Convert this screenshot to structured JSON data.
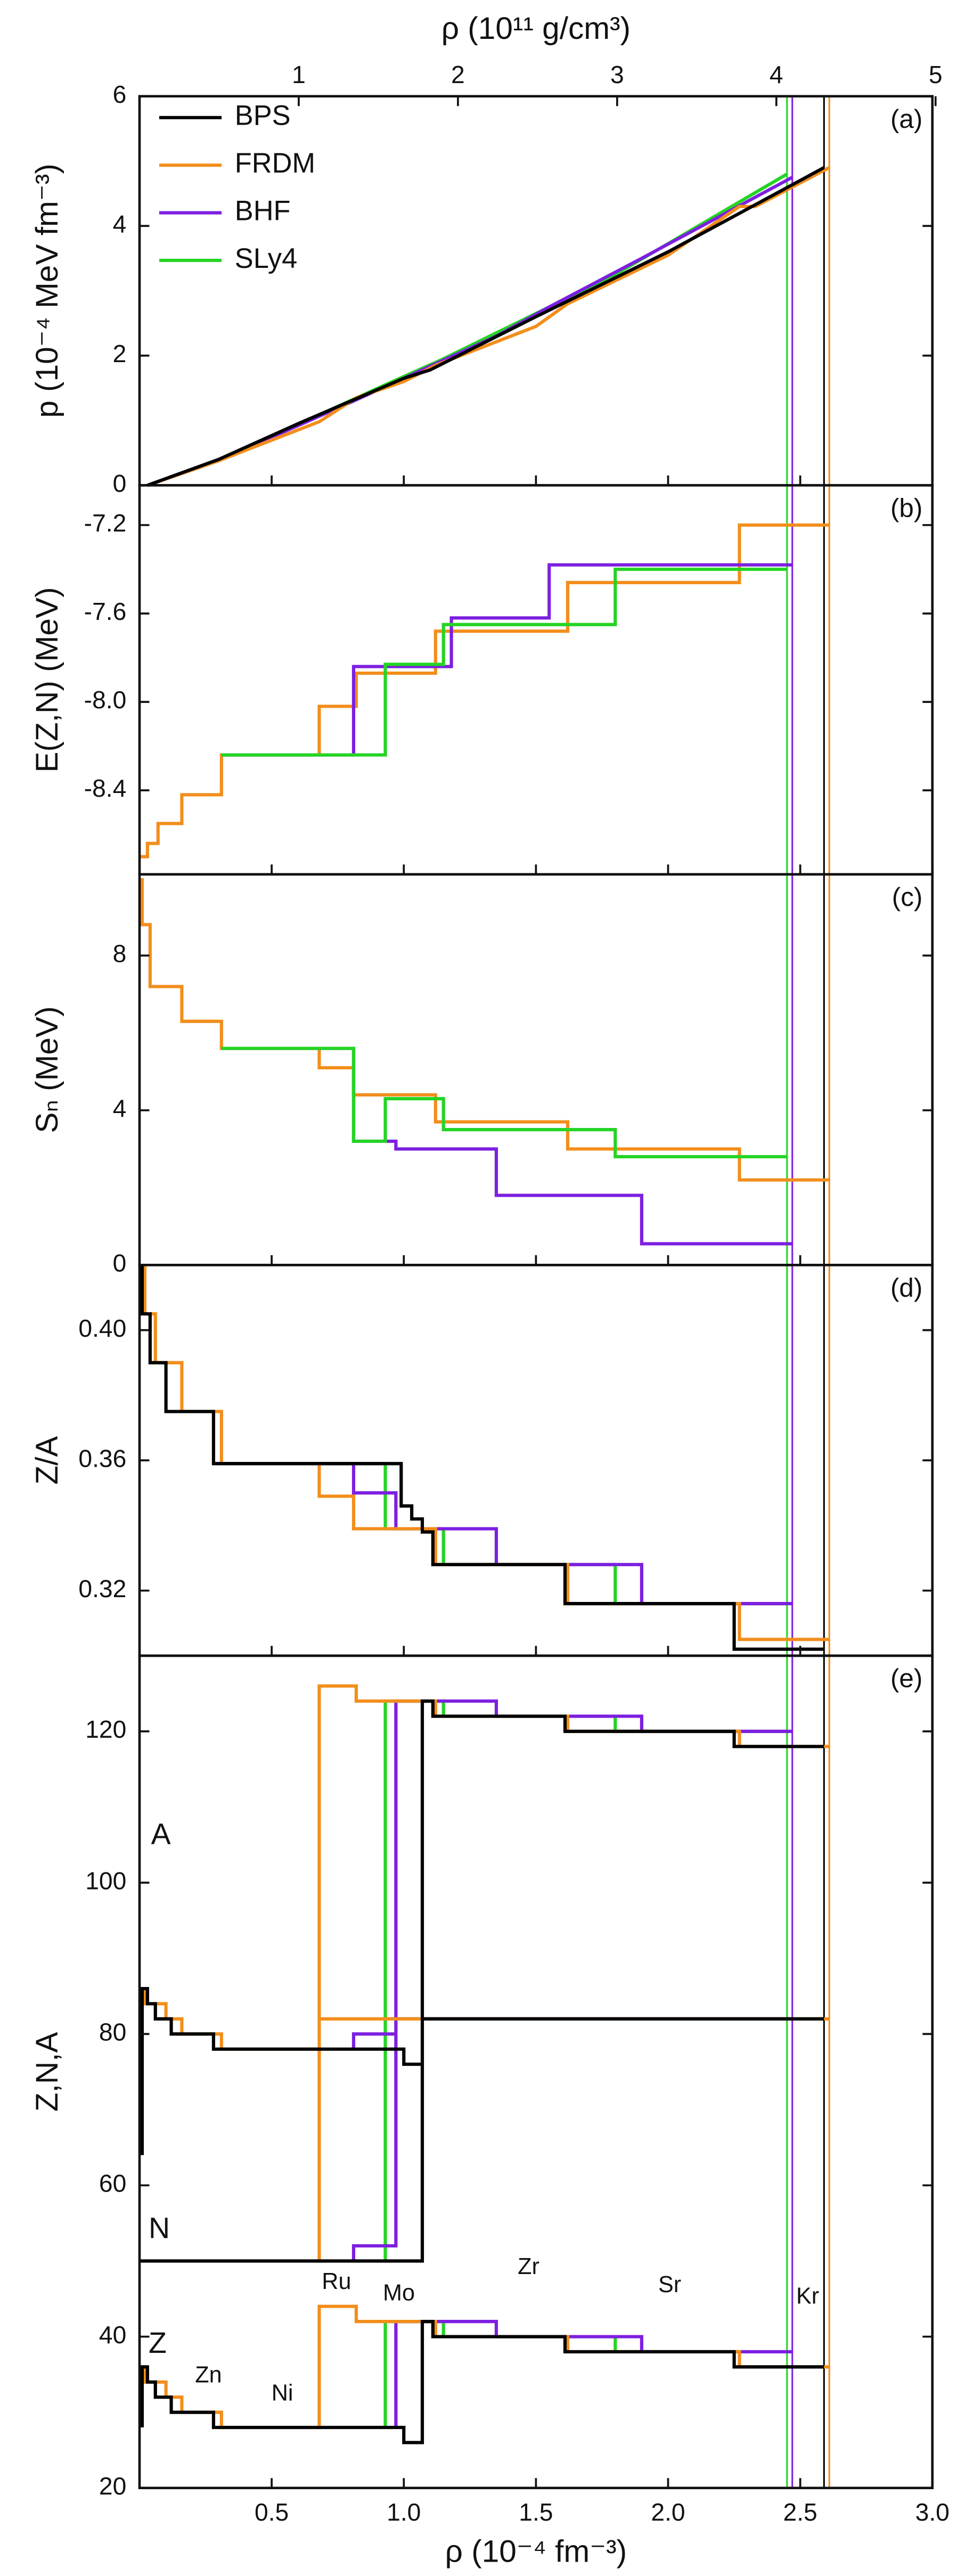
{
  "chart_data": [
    {
      "type": "line",
      "label": "(a)",
      "ylabel": "p (10⁻⁴ MeV fm⁻³)",
      "xlim": [
        0,
        3
      ],
      "xticks": [
        0.5,
        {
          "value": 1,
          "label": "1.0"
        },
        1.5,
        {
          "value": 2,
          "label": "2.0"
        },
        2.5,
        {
          "value": 3,
          "label": "3.0"
        }
      ],
      "x2label": "ρ (10¹¹ g/cm³)",
      "x2lim": [
        0,
        4.98
      ],
      "x2ticks": [
        1,
        2,
        3,
        4,
        5
      ],
      "ylim": [
        0,
        6
      ],
      "yticks": [
        0,
        2,
        4,
        6
      ],
      "legend": "upper left",
      "vlines": [
        {
          "x": 2.45,
          "color": "#25d425"
        },
        {
          "x": 2.47,
          "color": "#7d1fe0"
        },
        {
          "x": 2.59,
          "color": "#000000"
        },
        {
          "x": 2.61,
          "color": "#f28e1c"
        }
      ],
      "series": [
        {
          "name": "BPS",
          "color": "#000000",
          "x": [
            0.03,
            0.3,
            0.6,
            1.0,
            1.1,
            1.5,
            2.0,
            2.59
          ],
          "values": [
            0,
            0.4,
            0.95,
            1.65,
            1.78,
            2.6,
            3.6,
            4.9
          ]
        },
        {
          "name": "FRDM",
          "color": "#f28e1c",
          "x": [
            0.03,
            0.3,
            0.68,
            0.82,
            1.0,
            1.12,
            1.5,
            1.62,
            2.0,
            2.27,
            2.33,
            2.61
          ],
          "values": [
            0,
            0.38,
            0.98,
            1.35,
            1.6,
            1.85,
            2.45,
            2.8,
            3.55,
            4.3,
            4.3,
            4.9
          ]
        },
        {
          "name": "BHF",
          "color": "#7d1fe0",
          "x": [
            0.03,
            0.3,
            0.81,
            1.0,
            1.35,
            1.55,
            1.9,
            2.47
          ],
          "values": [
            0,
            0.38,
            1.3,
            1.65,
            2.3,
            2.75,
            3.5,
            4.75
          ]
        },
        {
          "name": "SLy4",
          "color": "#25d425",
          "x": [
            0.03,
            0.3,
            0.93,
            1.15,
            1.8,
            2.45
          ],
          "values": [
            0,
            0.38,
            1.55,
            1.95,
            3.25,
            4.8
          ]
        }
      ]
    },
    {
      "type": "line",
      "label": "(b)",
      "ylabel": "E(Z,N) (MeV)",
      "xlim": [
        0,
        3
      ],
      "xticks": [
        0.5,
        1,
        1.5,
        2,
        2.5,
        3
      ],
      "ylim": [
        -8.78,
        -7.02
      ],
      "yticks": [
        -8.4,
        {
          "value": -8,
          "label": "-8.0"
        },
        -7.6,
        -7.2
      ],
      "vlines": [
        {
          "x": 2.45,
          "color": "#25d425"
        },
        {
          "x": 2.47,
          "color": "#7d1fe0"
        },
        {
          "x": 2.59,
          "color": "#000000"
        },
        {
          "x": 2.61,
          "color": "#f28e1c"
        }
      ],
      "series": [
        {
          "color": "#f28e1c",
          "x": [
            0,
            0.03,
            0.03,
            0.07,
            0.07,
            0.16,
            0.16,
            0.31,
            0.31,
            0.68,
            0.68,
            0.82,
            0.82,
            1.12,
            1.12,
            1.62,
            1.62,
            2.27,
            2.27,
            2.61
          ],
          "values": [
            -8.7,
            -8.7,
            -8.64,
            -8.64,
            -8.55,
            -8.55,
            -8.42,
            -8.42,
            -8.24,
            -8.24,
            -8.02,
            -8.02,
            -7.87,
            -7.87,
            -7.68,
            -7.68,
            -7.46,
            -7.46,
            -7.2,
            -7.2
          ]
        },
        {
          "color": "#7d1fe0",
          "x": [
            0.31,
            0.81,
            0.81,
            1.18,
            1.18,
            1.55,
            1.55,
            2.47
          ],
          "values": [
            -8.24,
            -8.24,
            -7.84,
            -7.84,
            -7.62,
            -7.62,
            -7.38,
            -7.38
          ]
        },
        {
          "color": "#25d425",
          "x": [
            0.31,
            0.93,
            0.93,
            1.15,
            1.15,
            1.8,
            1.8,
            2.45
          ],
          "values": [
            -8.24,
            -8.24,
            -7.83,
            -7.83,
            -7.65,
            -7.65,
            -7.4,
            -7.4
          ]
        }
      ]
    },
    {
      "type": "line",
      "label": "(c)",
      "ylabel": "Sₙ (MeV)",
      "xlim": [
        0,
        3
      ],
      "xticks": [
        0.5,
        1,
        1.5,
        2,
        2.5,
        3
      ],
      "ylim": [
        0,
        10.1
      ],
      "yticks": [
        0,
        4,
        8
      ],
      "vlines": [
        {
          "x": 2.45,
          "color": "#25d425"
        },
        {
          "x": 2.47,
          "color": "#7d1fe0"
        },
        {
          "x": 2.59,
          "color": "#000000"
        },
        {
          "x": 2.61,
          "color": "#f28e1c"
        }
      ],
      "series": [
        {
          "color": "#f28e1c",
          "x": [
            0.01,
            0.01,
            0.04,
            0.04,
            0.16,
            0.16,
            0.31,
            0.31,
            0.68,
            0.68,
            0.81,
            0.81,
            1.12,
            1.12,
            1.62,
            1.62,
            2.27,
            2.27,
            2.61
          ],
          "values": [
            10,
            8.8,
            8.8,
            7.2,
            7.2,
            6.3,
            6.3,
            5.6,
            5.6,
            5.1,
            5.1,
            4.4,
            4.4,
            3.7,
            3.7,
            3.0,
            3.0,
            2.2,
            2.2
          ]
        },
        {
          "color": "#7d1fe0",
          "x": [
            0.31,
            0.81,
            0.81,
            0.97,
            0.97,
            1.35,
            1.35,
            1.9,
            1.9,
            2.47
          ],
          "values": [
            5.6,
            5.6,
            3.2,
            3.2,
            3.0,
            3.0,
            1.8,
            1.8,
            0.55,
            0.55
          ]
        },
        {
          "color": "#25d425",
          "x": [
            0.31,
            0.81,
            0.81,
            0.93,
            0.93,
            1.15,
            1.15,
            1.8,
            1.8,
            2.45
          ],
          "values": [
            5.6,
            5.6,
            3.2,
            3.2,
            4.3,
            4.3,
            3.5,
            3.5,
            2.8,
            2.8
          ]
        }
      ]
    },
    {
      "type": "line",
      "label": "(d)",
      "ylabel": "Z/A",
      "xlim": [
        0,
        3
      ],
      "xticks": [
        0.5,
        1,
        1.5,
        2,
        2.5,
        3
      ],
      "ylim": [
        0.3,
        0.42
      ],
      "yticks": [
        0.32,
        0.36,
        {
          "value": 0.4,
          "label": "0.40"
        }
      ],
      "vlines": [
        {
          "x": 2.45,
          "color": "#25d425"
        },
        {
          "x": 2.47,
          "color": "#7d1fe0"
        },
        {
          "x": 2.59,
          "color": "#000000"
        },
        {
          "x": 2.61,
          "color": "#f28e1c"
        }
      ],
      "series": [
        {
          "color": "#25d425",
          "x": [
            0.31,
            0.93,
            0.93,
            1.15,
            1.15,
            1.8,
            1.8,
            2.45
          ],
          "values": [
            0.359,
            0.359,
            0.339,
            0.339,
            0.328,
            0.328,
            0.316,
            0.316
          ]
        },
        {
          "color": "#7d1fe0",
          "x": [
            0.31,
            0.81,
            0.81,
            0.97,
            0.97,
            1.35,
            1.35,
            1.9,
            1.9,
            2.47
          ],
          "values": [
            0.359,
            0.359,
            0.35,
            0.35,
            0.339,
            0.339,
            0.328,
            0.328,
            0.316,
            0.316
          ]
        },
        {
          "color": "#f28e1c",
          "x": [
            0.02,
            0.02,
            0.06,
            0.06,
            0.16,
            0.16,
            0.31,
            0.31,
            0.68,
            0.68,
            0.81,
            0.81,
            1.12,
            1.12,
            1.62,
            1.62,
            2.27,
            2.27,
            2.61
          ],
          "values": [
            0.42,
            0.405,
            0.405,
            0.39,
            0.39,
            0.375,
            0.375,
            0.359,
            0.359,
            0.349,
            0.349,
            0.339,
            0.339,
            0.328,
            0.328,
            0.316,
            0.316,
            0.305,
            0.305
          ]
        },
        {
          "color": "#000000",
          "x": [
            0.01,
            0.01,
            0.04,
            0.04,
            0.1,
            0.1,
            0.28,
            0.28,
            0.99,
            0.99,
            1.03,
            1.03,
            1.07,
            1.07,
            1.11,
            1.11,
            1.61,
            1.61,
            2.25,
            2.25,
            2.59
          ],
          "values": [
            0.42,
            0.405,
            0.405,
            0.39,
            0.39,
            0.375,
            0.375,
            0.359,
            0.359,
            0.346,
            0.346,
            0.342,
            0.342,
            0.338,
            0.338,
            0.328,
            0.328,
            0.316,
            0.316,
            0.302,
            0.302
          ]
        }
      ]
    },
    {
      "type": "line",
      "label": "(e)",
      "ylabel": "Z,N,A",
      "xlabel": "ρ (10⁻⁴ fm⁻³)",
      "xlim": [
        0,
        3
      ],
      "xticks": [
        0.5,
        {
          "value": 1,
          "label": "1.0"
        },
        1.5,
        {
          "value": 2,
          "label": "2.0"
        },
        2.5,
        {
          "value": 3,
          "label": "3.0"
        }
      ],
      "ylim": [
        20,
        130
      ],
      "yticks": [
        20,
        40,
        60,
        80,
        100,
        120
      ],
      "vlines": [
        {
          "x": 2.45,
          "color": "#25d425"
        },
        {
          "x": 2.47,
          "color": "#7d1fe0"
        },
        {
          "x": 2.59,
          "color": "#000000"
        },
        {
          "x": 2.61,
          "color": "#f28e1c"
        }
      ],
      "annotations": [
        "A",
        "N",
        "Z",
        "Zn",
        "Ni",
        "Ru",
        "Mo",
        "Zr",
        "Sr",
        "Kr"
      ],
      "series": [
        {
          "color": "#25d425",
          "x": [
            0.93,
            0.93,
            1.15,
            1.15,
            1.8,
            1.8,
            2.45,
            null,
            0.93,
            0.93,
            2.45,
            null,
            0.93,
            0.93,
            1.15,
            1.15,
            1.8,
            1.8,
            2.45
          ],
          "values": [
            78,
            124,
            124,
            122,
            122,
            120,
            120,
            null,
            50,
            82,
            82,
            null,
            28,
            42,
            42,
            40,
            40,
            38,
            38
          ]
        },
        {
          "color": "#7d1fe0",
          "x": [
            0.81,
            0.81,
            0.97,
            0.97,
            1.35,
            1.35,
            1.9,
            1.9,
            2.47,
            null,
            0.81,
            0.81,
            0.97,
            0.97,
            2.47,
            null,
            0.97,
            0.97,
            1.35,
            1.35,
            1.9,
            1.9,
            2.47
          ],
          "values": [
            78,
            80,
            80,
            124,
            124,
            122,
            122,
            120,
            120,
            null,
            50,
            52,
            52,
            82,
            82,
            null,
            28,
            42,
            42,
            40,
            40,
            38,
            38
          ]
        },
        {
          "color": "#f28e1c",
          "x": [
            0.02,
            0.02,
            0.1,
            0.1,
            0.16,
            0.16,
            0.31,
            0.31,
            0.68,
            0.68,
            0.82,
            0.82,
            1.12,
            1.12,
            1.62,
            1.62,
            2.27,
            2.27,
            2.61,
            null,
            0.68,
            0.68,
            2.61,
            null,
            0.02,
            0.02,
            0.1,
            0.1,
            0.16,
            0.16,
            0.31,
            0.31,
            0.68,
            0.68,
            0.82,
            0.82,
            1.12,
            1.12,
            1.62,
            1.62,
            2.27,
            2.27,
            2.61
          ],
          "values": [
            86,
            84,
            84,
            82,
            82,
            80,
            80,
            78,
            78,
            126,
            126,
            124,
            124,
            122,
            122,
            120,
            120,
            118,
            118,
            null,
            50,
            82,
            82,
            null,
            36,
            34,
            34,
            32,
            32,
            30,
            30,
            28,
            28,
            44,
            44,
            42,
            42,
            40,
            40,
            38,
            38,
            36,
            36
          ]
        },
        {
          "color": "#000000",
          "x": [
            0.01,
            0.01,
            0.03,
            0.03,
            0.06,
            0.06,
            0.12,
            0.12,
            0.28,
            0.28,
            1.0,
            1.0,
            1.07,
            1.07,
            1.11,
            1.11,
            1.61,
            1.61,
            2.25,
            2.25,
            2.59,
            null,
            0,
            1.07,
            1.07,
            2.59,
            null,
            0.01,
            0.01,
            0.03,
            0.03,
            0.06,
            0.06,
            0.12,
            0.12,
            0.28,
            0.28,
            1.0,
            1.0,
            1.07,
            1.07,
            1.11,
            1.11,
            1.61,
            1.61,
            2.25,
            2.25,
            2.59
          ],
          "values": [
            64,
            86,
            86,
            84,
            84,
            82,
            82,
            80,
            80,
            78,
            78,
            76,
            76,
            124,
            124,
            122,
            122,
            120,
            120,
            118,
            118,
            null,
            50,
            50,
            82,
            82,
            null,
            28,
            36,
            36,
            34,
            34,
            32,
            32,
            30,
            30,
            28,
            28,
            26,
            26,
            42,
            42,
            40,
            40,
            38,
            38,
            36,
            36
          ]
        }
      ]
    }
  ]
}
